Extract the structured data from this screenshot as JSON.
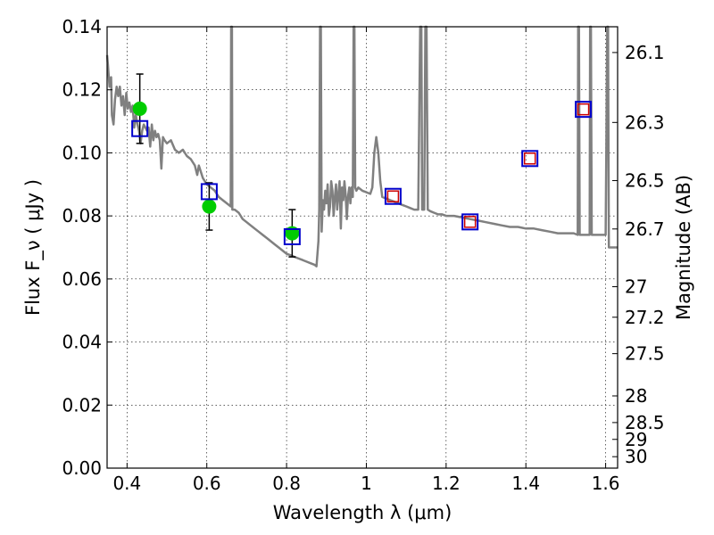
{
  "chart_data": {
    "type": "scatter",
    "title": "",
    "xlabel": "Wavelength  λ (μm)",
    "ylabel": "Flux  F_ν  ( μJy )",
    "ylabel_right": "Magnitude (AB)",
    "xlim": [
      0.35,
      1.63
    ],
    "ylim": [
      0.0,
      0.14
    ],
    "x_ticks": [
      0.4,
      0.6,
      0.8,
      1.0,
      1.2,
      1.4,
      1.6
    ],
    "x_tick_labels": [
      "0.4",
      "0.6",
      "0.8",
      "1",
      "1.2",
      "1.4",
      "1.6"
    ],
    "y_ticks": [
      0.0,
      0.02,
      0.04,
      0.06,
      0.08,
      0.1,
      0.12,
      0.14
    ],
    "y_tick_labels": [
      "0.00",
      "0.02",
      "0.04",
      "0.06",
      "0.08",
      "0.10",
      "0.12",
      "0.14"
    ],
    "mag_ticks": [
      26.1,
      26.3,
      26.5,
      26.7,
      27,
      27.2,
      27.5,
      28,
      28.5,
      29,
      30
    ],
    "mag_tick_labels": [
      "26.1",
      "26.3",
      "26.5",
      "26.7",
      "27",
      "27.2",
      "27.5",
      "28",
      "28.5",
      "29",
      "30"
    ],
    "grid": true,
    "colors": {
      "model": "#808080",
      "observed": "#00cc00",
      "model_box": "#0000cc",
      "inner_box": "#cc0000",
      "errorbar": "#000000"
    },
    "series": [
      {
        "type": "line",
        "points": [
          [
            0.35,
            0.131
          ],
          [
            0.352,
            0.128
          ],
          [
            0.356,
            0.121
          ],
          [
            0.36,
            0.124
          ],
          [
            0.362,
            0.112
          ],
          [
            0.366,
            0.109
          ],
          [
            0.37,
            0.117
          ],
          [
            0.374,
            0.121
          ],
          [
            0.378,
            0.118
          ],
          [
            0.382,
            0.121
          ],
          [
            0.386,
            0.115
          ],
          [
            0.39,
            0.118
          ],
          [
            0.394,
            0.112
          ],
          [
            0.398,
            0.119
          ],
          [
            0.402,
            0.114
          ],
          [
            0.406,
            0.116
          ],
          [
            0.41,
            0.113
          ],
          [
            0.414,
            0.115
          ],
          [
            0.418,
            0.108
          ],
          [
            0.422,
            0.112
          ],
          [
            0.426,
            0.109
          ],
          [
            0.43,
            0.107
          ],
          [
            0.434,
            0.103
          ],
          [
            0.438,
            0.107
          ],
          [
            0.442,
            0.109
          ],
          [
            0.446,
            0.108
          ],
          [
            0.45,
            0.107
          ],
          [
            0.454,
            0.108
          ],
          [
            0.458,
            0.102
          ],
          [
            0.462,
            0.109
          ],
          [
            0.466,
            0.104
          ],
          [
            0.47,
            0.107
          ],
          [
            0.474,
            0.105
          ],
          [
            0.478,
            0.106
          ],
          [
            0.482,
            0.104
          ],
          [
            0.486,
            0.095
          ],
          [
            0.49,
            0.105
          ],
          [
            0.494,
            0.104
          ],
          [
            0.5,
            0.103
          ],
          [
            0.51,
            0.104
          ],
          [
            0.52,
            0.101
          ],
          [
            0.53,
            0.1
          ],
          [
            0.54,
            0.101
          ],
          [
            0.55,
            0.099
          ],
          [
            0.56,
            0.098
          ],
          [
            0.57,
            0.096
          ],
          [
            0.576,
            0.093
          ],
          [
            0.58,
            0.096
          ],
          [
            0.59,
            0.092
          ],
          [
            0.6,
            0.09
          ],
          [
            0.61,
            0.089
          ],
          [
            0.62,
            0.088
          ],
          [
            0.63,
            0.086
          ],
          [
            0.64,
            0.085
          ],
          [
            0.65,
            0.084
          ],
          [
            0.66,
            0.083
          ],
          [
            0.661,
            0.14
          ],
          [
            0.663,
            0.14
          ],
          [
            0.664,
            0.082
          ],
          [
            0.67,
            0.082
          ],
          [
            0.68,
            0.081
          ],
          [
            0.69,
            0.079
          ],
          [
            0.7,
            0.078
          ],
          [
            0.71,
            0.077
          ],
          [
            0.72,
            0.076
          ],
          [
            0.73,
            0.075
          ],
          [
            0.74,
            0.074
          ],
          [
            0.75,
            0.073
          ],
          [
            0.76,
            0.072
          ],
          [
            0.77,
            0.071
          ],
          [
            0.78,
            0.07
          ],
          [
            0.79,
            0.069
          ],
          [
            0.8,
            0.068
          ],
          [
            0.81,
            0.0675
          ],
          [
            0.82,
            0.067
          ],
          [
            0.83,
            0.0665
          ],
          [
            0.84,
            0.066
          ],
          [
            0.85,
            0.0655
          ],
          [
            0.86,
            0.065
          ],
          [
            0.87,
            0.0645
          ],
          [
            0.875,
            0.064
          ],
          [
            0.88,
            0.072
          ],
          [
            0.882,
            0.082
          ],
          [
            0.884,
            0.14
          ],
          [
            0.886,
            0.14
          ],
          [
            0.888,
            0.075
          ],
          [
            0.891,
            0.085
          ],
          [
            0.894,
            0.082
          ],
          [
            0.897,
            0.088
          ],
          [
            0.9,
            0.084
          ],
          [
            0.903,
            0.09
          ],
          [
            0.906,
            0.08
          ],
          [
            0.909,
            0.083
          ],
          [
            0.912,
            0.091
          ],
          [
            0.915,
            0.088
          ],
          [
            0.918,
            0.08
          ],
          [
            0.921,
            0.086
          ],
          [
            0.924,
            0.09
          ],
          [
            0.927,
            0.082
          ],
          [
            0.93,
            0.087
          ],
          [
            0.933,
            0.091
          ],
          [
            0.936,
            0.076
          ],
          [
            0.939,
            0.089
          ],
          [
            0.942,
            0.085
          ],
          [
            0.945,
            0.091
          ],
          [
            0.948,
            0.087
          ],
          [
            0.951,
            0.079
          ],
          [
            0.954,
            0.086
          ],
          [
            0.957,
            0.089
          ],
          [
            0.96,
            0.084
          ],
          [
            0.963,
            0.089
          ],
          [
            0.966,
            0.086
          ],
          [
            0.968,
            0.14
          ],
          [
            0.97,
            0.14
          ],
          [
            0.972,
            0.089
          ],
          [
            0.975,
            0.088
          ],
          [
            0.98,
            0.089
          ],
          [
            0.99,
            0.088
          ],
          [
            1.0,
            0.0875
          ],
          [
            1.01,
            0.087
          ],
          [
            1.015,
            0.089
          ],
          [
            1.02,
            0.1
          ],
          [
            1.025,
            0.105
          ],
          [
            1.03,
            0.1
          ],
          [
            1.035,
            0.091
          ],
          [
            1.04,
            0.086
          ],
          [
            1.05,
            0.0855
          ],
          [
            1.06,
            0.085
          ],
          [
            1.07,
            0.0845
          ],
          [
            1.08,
            0.084
          ],
          [
            1.09,
            0.0835
          ],
          [
            1.1,
            0.083
          ],
          [
            1.11,
            0.0825
          ],
          [
            1.12,
            0.082
          ],
          [
            1.13,
            0.082
          ],
          [
            1.135,
            0.14
          ],
          [
            1.138,
            0.14
          ],
          [
            1.14,
            0.082
          ],
          [
            1.145,
            0.082
          ],
          [
            1.148,
            0.14
          ],
          [
            1.151,
            0.14
          ],
          [
            1.154,
            0.082
          ],
          [
            1.16,
            0.0815
          ],
          [
            1.17,
            0.081
          ],
          [
            1.18,
            0.0805
          ],
          [
            1.19,
            0.0805
          ],
          [
            1.2,
            0.08
          ],
          [
            1.22,
            0.08
          ],
          [
            1.24,
            0.0795
          ],
          [
            1.26,
            0.079
          ],
          [
            1.28,
            0.0785
          ],
          [
            1.3,
            0.078
          ],
          [
            1.32,
            0.0775
          ],
          [
            1.34,
            0.077
          ],
          [
            1.36,
            0.0765
          ],
          [
            1.38,
            0.0765
          ],
          [
            1.4,
            0.076
          ],
          [
            1.42,
            0.076
          ],
          [
            1.44,
            0.0755
          ],
          [
            1.46,
            0.075
          ],
          [
            1.48,
            0.0745
          ],
          [
            1.5,
            0.0745
          ],
          [
            1.52,
            0.0745
          ],
          [
            1.53,
            0.074
          ],
          [
            1.531,
            0.14
          ],
          [
            1.533,
            0.14
          ],
          [
            1.535,
            0.074
          ],
          [
            1.55,
            0.074
          ],
          [
            1.56,
            0.074
          ],
          [
            1.561,
            0.14
          ],
          [
            1.563,
            0.14
          ],
          [
            1.565,
            0.074
          ],
          [
            1.58,
            0.074
          ],
          [
            1.59,
            0.074
          ],
          [
            1.6,
            0.074
          ],
          [
            1.604,
            0.14
          ],
          [
            1.606,
            0.14
          ],
          [
            1.608,
            0.07
          ],
          [
            1.62,
            0.07
          ],
          [
            1.63,
            0.07
          ]
        ]
      },
      {
        "type": "scatter",
        "points": [
          {
            "x": 0.432,
            "y": 0.114,
            "yerr": 0.011
          },
          {
            "x": 0.606,
            "y": 0.083,
            "yerr": 0.0075
          },
          {
            "x": 0.814,
            "y": 0.0745,
            "yerr": 0.0075
          }
        ]
      },
      {
        "type": "scatter",
        "points": [
          {
            "x": 0.432,
            "y": 0.1077
          },
          {
            "x": 0.606,
            "y": 0.0877
          },
          {
            "x": 0.814,
            "y": 0.0734
          },
          {
            "x": 1.067,
            "y": 0.0862
          },
          {
            "x": 1.26,
            "y": 0.0781
          },
          {
            "x": 1.41,
            "y": 0.0982
          },
          {
            "x": 1.544,
            "y": 0.1138
          }
        ]
      },
      {
        "type": "scatter",
        "points": [
          {
            "x": 1.067,
            "y": 0.0862
          },
          {
            "x": 1.26,
            "y": 0.0781
          },
          {
            "x": 1.41,
            "y": 0.0982
          },
          {
            "x": 1.544,
            "y": 0.1138
          }
        ]
      }
    ]
  }
}
